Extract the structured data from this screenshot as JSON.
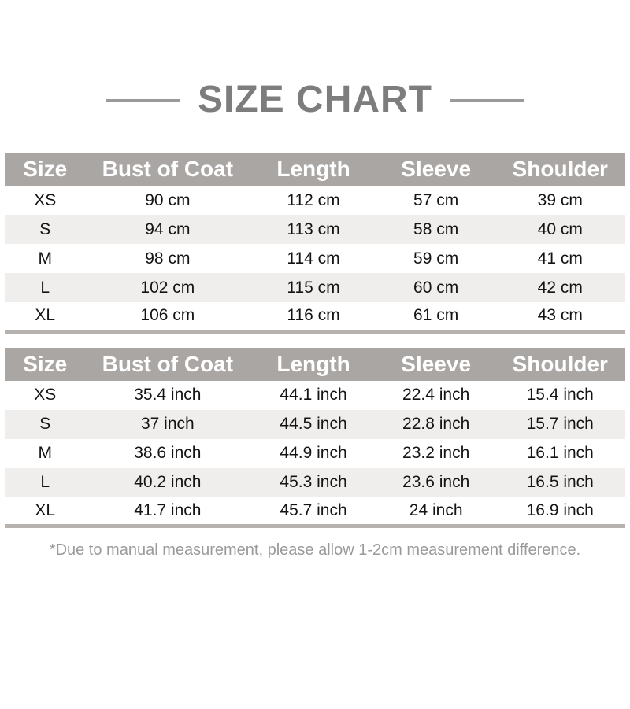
{
  "page": {
    "title": "SIZE CHART",
    "footnote": "*Due to manual measurement, please allow 1-2cm measurement difference."
  },
  "chart_data": [
    {
      "type": "table",
      "title": "SIZE CHART",
      "unit": "cm",
      "columns": [
        "Size",
        "Bust of Coat",
        "Length",
        "Sleeve",
        "Shoulder"
      ],
      "rows": [
        [
          "XS",
          "90 cm",
          "112 cm",
          "57 cm",
          "39 cm"
        ],
        [
          "S",
          "94 cm",
          "113 cm",
          "58 cm",
          "40 cm"
        ],
        [
          "M",
          "98 cm",
          "114 cm",
          "59 cm",
          "41 cm"
        ],
        [
          "L",
          "102 cm",
          "115 cm",
          "60 cm",
          "42 cm"
        ],
        [
          "XL",
          "106 cm",
          "116 cm",
          "61 cm",
          "43 cm"
        ]
      ]
    },
    {
      "type": "table",
      "title": "SIZE CHART",
      "unit": "inch",
      "columns": [
        "Size",
        "Bust of Coat",
        "Length",
        "Sleeve",
        "Shoulder"
      ],
      "rows": [
        [
          "XS",
          "35.4 inch",
          "44.1 inch",
          "22.4 inch",
          "15.4 inch"
        ],
        [
          "S",
          "37 inch",
          "44.5 inch",
          "22.8 inch",
          "15.7 inch"
        ],
        [
          "M",
          "38.6 inch",
          "44.9 inch",
          "23.2 inch",
          "16.1 inch"
        ],
        [
          "L",
          "40.2 inch",
          "45.3 inch",
          "23.6 inch",
          "16.5 inch"
        ],
        [
          "XL",
          "41.7 inch",
          "45.7 inch",
          "24 inch",
          "16.9 inch"
        ]
      ]
    }
  ],
  "colors": {
    "header_bg": "#aaa6a4",
    "header_text": "#ffffff",
    "row_alt_bg": "#efeeed",
    "table_bottom_bar": "#b5b2b0",
    "title_text": "#7d7d7d",
    "title_line": "#9a9a9a",
    "footnote_text": "#9a9a9a",
    "body_text": "#141414",
    "background": "#ffffff"
  }
}
